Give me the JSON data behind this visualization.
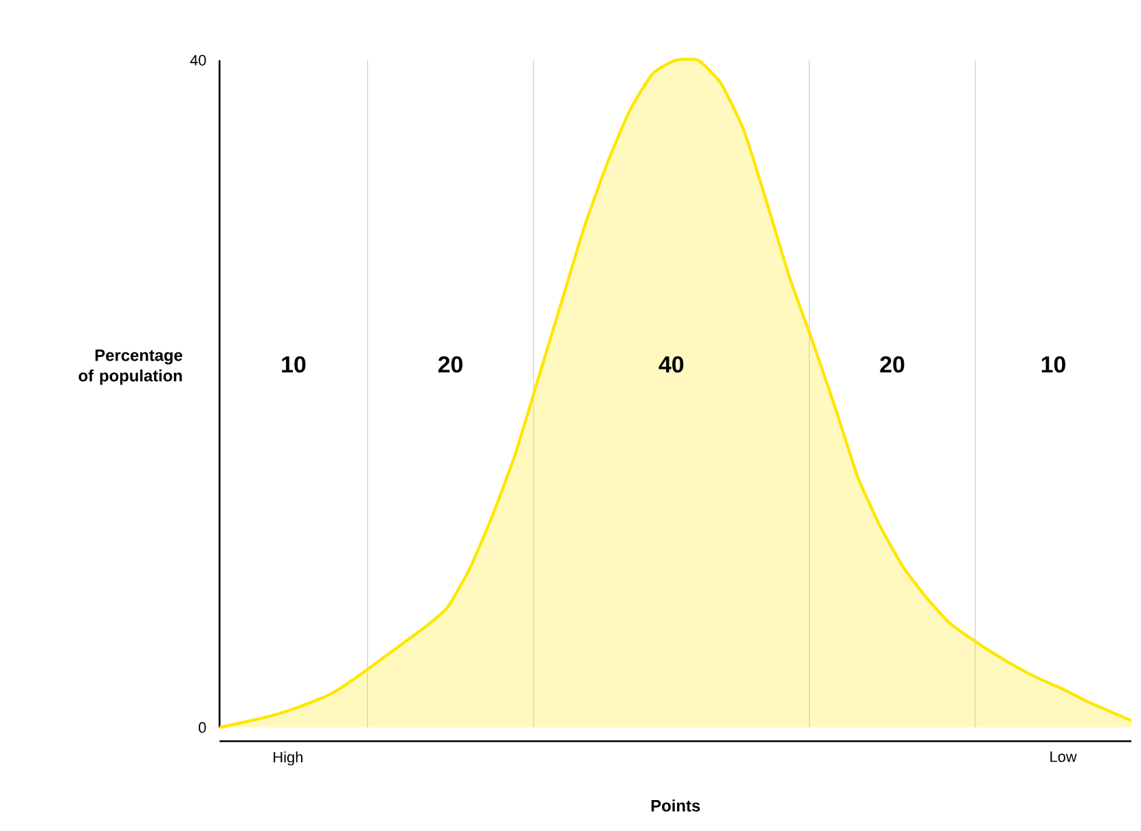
{
  "chart_data": {
    "type": "area",
    "xlabel": "Points",
    "ylabel": "Percentage of population",
    "categories": [
      null,
      null,
      null,
      "High",
      null,
      null,
      null,
      null,
      null,
      null,
      null,
      null,
      null,
      null,
      null,
      null,
      null,
      null,
      null,
      null,
      null,
      null,
      null,
      null,
      null,
      null,
      null,
      null,
      null,
      null,
      null,
      null,
      null,
      null,
      null,
      null,
      null,
      "Low",
      null,
      null,
      null
    ],
    "series": [
      {
        "color": "#ffe600",
        "values": [
          0,
          0.3,
          0.6,
          1.0,
          1.5,
          2.1,
          3.0,
          4.0,
          5.0,
          6.0,
          7.2,
          9.6,
          12.8,
          16.5,
          21,
          25.5,
          30,
          33.8,
          37,
          39.2,
          40,
          40,
          38.6,
          35.8,
          31.5,
          27,
          23.2,
          19.2,
          15,
          12,
          9.6,
          7.8,
          6.3,
          5.3,
          4.4,
          3.6,
          2.9,
          2.3,
          1.6,
          1.0,
          0.4
        ]
      }
    ],
    "ylim": [
      0,
      40
    ],
    "yticks": [
      0,
      40
    ],
    "annotations": [
      "10",
      "20",
      "40",
      "20",
      "10"
    ]
  }
}
